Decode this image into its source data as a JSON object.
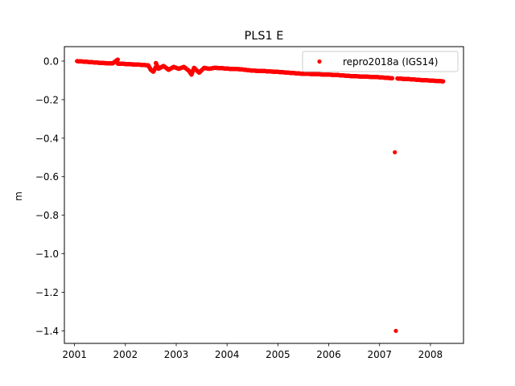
{
  "chart_data": {
    "type": "scatter",
    "title": "PLS1 E",
    "xlabel": "",
    "ylabel": "m",
    "xlim": [
      2000.8,
      2008.65
    ],
    "ylim": [
      -1.465,
      0.075
    ],
    "xticks": [
      2001,
      2002,
      2003,
      2004,
      2005,
      2006,
      2007,
      2008
    ],
    "xtick_labels": [
      "2001",
      "2002",
      "2003",
      "2004",
      "2005",
      "2006",
      "2007",
      "2008"
    ],
    "yticks": [
      0.0,
      -0.2,
      -0.4,
      -0.6,
      -0.8,
      -1.0,
      -1.2,
      -1.4
    ],
    "ytick_labels": [
      "0.0",
      "−0.2",
      "−0.4",
      "−0.6",
      "−0.8",
      "−1.0",
      "−1.2",
      "−1.4"
    ],
    "grid": false,
    "legend": {
      "position": "upper right"
    },
    "series": [
      {
        "name": "repro2018a (IGS14)",
        "color": "#ff0000",
        "marker": "circle",
        "points": [
          [
            2001.05,
            0.0
          ],
          [
            2001.15,
            -0.002
          ],
          [
            2001.25,
            -0.004
          ],
          [
            2001.35,
            -0.006
          ],
          [
            2001.45,
            -0.008
          ],
          [
            2001.55,
            -0.01
          ],
          [
            2001.65,
            -0.011
          ],
          [
            2001.75,
            -0.012
          ],
          [
            2001.85,
            0.008
          ],
          [
            2001.85,
            -0.013
          ],
          [
            2001.95,
            -0.014
          ],
          [
            2002.05,
            -0.016
          ],
          [
            2002.15,
            -0.017
          ],
          [
            2002.25,
            -0.018
          ],
          [
            2002.35,
            -0.02
          ],
          [
            2002.45,
            -0.022
          ],
          [
            2002.5,
            -0.045
          ],
          [
            2002.55,
            -0.055
          ],
          [
            2002.6,
            -0.03
          ],
          [
            2002.6,
            -0.01
          ],
          [
            2002.65,
            -0.04
          ],
          [
            2002.75,
            -0.025
          ],
          [
            2002.85,
            -0.045
          ],
          [
            2002.95,
            -0.03
          ],
          [
            2003.05,
            -0.04
          ],
          [
            2003.15,
            -0.03
          ],
          [
            2003.25,
            -0.05
          ],
          [
            2003.3,
            -0.07
          ],
          [
            2003.35,
            -0.035
          ],
          [
            2003.45,
            -0.06
          ],
          [
            2003.55,
            -0.035
          ],
          [
            2003.65,
            -0.04
          ],
          [
            2003.75,
            -0.035
          ],
          [
            2003.85,
            -0.036
          ],
          [
            2003.95,
            -0.038
          ],
          [
            2004.05,
            -0.04
          ],
          [
            2004.15,
            -0.041
          ],
          [
            2004.25,
            -0.042
          ],
          [
            2004.35,
            -0.045
          ],
          [
            2004.45,
            -0.048
          ],
          [
            2004.55,
            -0.05
          ],
          [
            2004.65,
            -0.051
          ],
          [
            2004.75,
            -0.052
          ],
          [
            2004.85,
            -0.054
          ],
          [
            2004.95,
            -0.055
          ],
          [
            2005.05,
            -0.057
          ],
          [
            2005.15,
            -0.059
          ],
          [
            2005.25,
            -0.061
          ],
          [
            2005.35,
            -0.063
          ],
          [
            2005.45,
            -0.065
          ],
          [
            2005.55,
            -0.066
          ],
          [
            2005.65,
            -0.067
          ],
          [
            2005.75,
            -0.068
          ],
          [
            2005.85,
            -0.069
          ],
          [
            2005.95,
            -0.07
          ],
          [
            2006.05,
            -0.071
          ],
          [
            2006.15,
            -0.072
          ],
          [
            2006.25,
            -0.074
          ],
          [
            2006.35,
            -0.076
          ],
          [
            2006.45,
            -0.078
          ],
          [
            2006.55,
            -0.079
          ],
          [
            2006.65,
            -0.08
          ],
          [
            2006.75,
            -0.081
          ],
          [
            2006.85,
            -0.082
          ],
          [
            2006.95,
            -0.083
          ],
          [
            2007.05,
            -0.085
          ],
          [
            2007.15,
            -0.087
          ],
          [
            2007.25,
            -0.089
          ],
          [
            2007.3,
            -0.473
          ],
          [
            2007.32,
            -1.4
          ],
          [
            2007.35,
            -0.09
          ],
          [
            2007.45,
            -0.092
          ],
          [
            2007.55,
            -0.093
          ],
          [
            2007.65,
            -0.095
          ],
          [
            2007.75,
            -0.097
          ],
          [
            2007.85,
            -0.099
          ],
          [
            2007.95,
            -0.1
          ],
          [
            2008.05,
            -0.102
          ],
          [
            2008.15,
            -0.103
          ],
          [
            2008.25,
            -0.105
          ]
        ]
      }
    ]
  }
}
